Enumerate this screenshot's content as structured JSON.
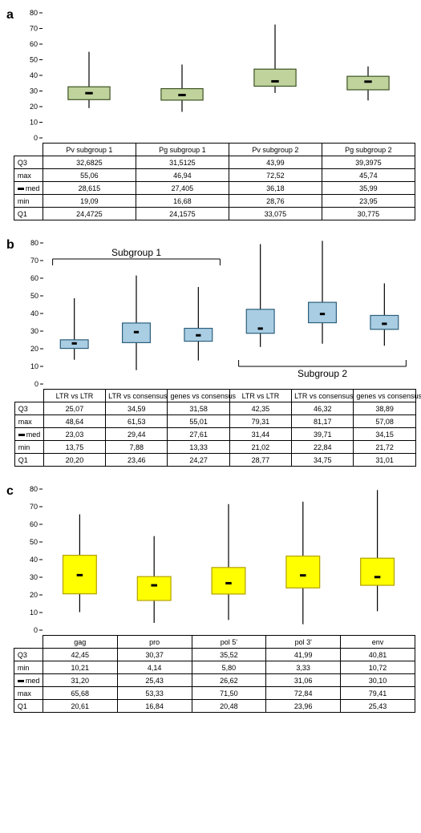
{
  "yaxis": {
    "min": 0,
    "max": 80,
    "step": 10,
    "fontsize": 9,
    "color": "#000000"
  },
  "panelLetterFontsize": 16,
  "panels": [
    {
      "letter": "a",
      "boxFill": "#c0d39c",
      "boxStroke": "#3d5323",
      "boxes": [
        {
          "label": "Pv subgroup 1",
          "q1": 24.4725,
          "med": 28.615,
          "q3": 32.6825,
          "min": 19.09,
          "max": 55.06
        },
        {
          "label": "Pg subgroup 1",
          "q1": 24.1575,
          "med": 27.405,
          "q3": 31.5125,
          "min": 16.68,
          "max": 46.94
        },
        {
          "label": "Pv subgroup 2",
          "q1": 33.075,
          "med": 36.18,
          "q3": 43.99,
          "min": 28.76,
          "max": 72.52
        },
        {
          "label": "Pg subgroup 2",
          "q1": 30.775,
          "med": 35.99,
          "q3": 39.3975,
          "min": 23.95,
          "max": 45.74
        }
      ],
      "tableRows": [
        "Q3",
        "max",
        "med",
        "min",
        "Q1"
      ],
      "tableRowKeys": [
        "q3",
        "max",
        "med",
        "min",
        "q1"
      ],
      "tableValues": [
        [
          "32,6825",
          "31,5125",
          "43,99",
          "39,3975"
        ],
        [
          "55,06",
          "46,94",
          "72,52",
          "45,74"
        ],
        [
          "28,615",
          "27,405",
          "36,18",
          "35,99"
        ],
        [
          "19,09",
          "16,68",
          "28,76",
          "23,95"
        ],
        [
          "24,4725",
          "24,1575",
          "33,075",
          "30,775"
        ]
      ],
      "chartHeight": 170
    },
    {
      "letter": "b",
      "boxFill": "#a9cde3",
      "boxStroke": "#2d5f7c",
      "annotations": [
        {
          "text": "Subgroup 1",
          "side": "top",
          "fromBox": 0,
          "toBox": 2
        },
        {
          "text": "Subgroup 2",
          "side": "bottom",
          "fromBox": 3,
          "toBox": 5
        }
      ],
      "boxes": [
        {
          "label": "LTR vs LTR",
          "q1": 20.2,
          "med": 23.03,
          "q3": 25.07,
          "min": 13.75,
          "max": 48.64
        },
        {
          "label": "LTR vs consensus",
          "q1": 23.46,
          "med": 29.44,
          "q3": 34.59,
          "min": 7.88,
          "max": 61.53
        },
        {
          "label": "genes vs consensus",
          "q1": 24.27,
          "med": 27.61,
          "q3": 31.58,
          "min": 13.33,
          "max": 55.01
        },
        {
          "label": "LTR vs LTR",
          "q1": 28.77,
          "med": 31.44,
          "q3": 42.35,
          "min": 21.02,
          "max": 79.31
        },
        {
          "label": "LTR vs consensus",
          "q1": 34.75,
          "med": 39.71,
          "q3": 46.32,
          "min": 22.84,
          "max": 81.17
        },
        {
          "label": "genes vs consensus",
          "q1": 31.01,
          "med": 34.15,
          "q3": 38.89,
          "min": 21.72,
          "max": 57.08
        }
      ],
      "tableRows": [
        "Q3",
        "max",
        "med",
        "min",
        "Q1"
      ],
      "tableValues": [
        [
          "25,07",
          "34,59",
          "31,58",
          "42,35",
          "46,32",
          "38,89"
        ],
        [
          "48,64",
          "61,53",
          "55,01",
          "79,31",
          "81,17",
          "57,08"
        ],
        [
          "23,03",
          "29,44",
          "27,61",
          "31,44",
          "39,71",
          "34,15"
        ],
        [
          "13,75",
          "7,88",
          "13,33",
          "21,02",
          "22,84",
          "21,72"
        ],
        [
          "20,20",
          "23,46",
          "24,27",
          "28,77",
          "34,75",
          "31,01"
        ]
      ],
      "chartHeight": 190
    },
    {
      "letter": "c",
      "boxFill": "#ffff00",
      "boxStroke": "#b3a000",
      "boxes": [
        {
          "label": "gag",
          "q1": 20.61,
          "med": 31.2,
          "q3": 42.45,
          "min": 10.21,
          "max": 65.68
        },
        {
          "label": "pro",
          "q1": 16.84,
          "med": 25.43,
          "q3": 30.37,
          "min": 4.14,
          "max": 53.33
        },
        {
          "label": "pol 5'",
          "q1": 20.48,
          "med": 26.62,
          "q3": 35.52,
          "min": 5.8,
          "max": 71.5
        },
        {
          "label": "pol 3'",
          "q1": 23.96,
          "med": 31.06,
          "q3": 41.99,
          "min": 3.33,
          "max": 72.84
        },
        {
          "label": "env",
          "q1": 25.43,
          "med": 30.1,
          "q3": 40.81,
          "min": 10.72,
          "max": 79.41
        }
      ],
      "tableRows": [
        "Q3",
        "min",
        "med",
        "max",
        "Q1"
      ],
      "tableValues": [
        [
          "42,45",
          "30,37",
          "35,52",
          "41,99",
          "40,81"
        ],
        [
          "10,21",
          "4,14",
          "5,80",
          "3,33",
          "10,72"
        ],
        [
          "31,20",
          "25,43",
          "26,62",
          "31,06",
          "30,10"
        ],
        [
          "65,68",
          "53,33",
          "71,50",
          "72,84",
          "79,41"
        ],
        [
          "20,61",
          "16,84",
          "20,48",
          "23,96",
          "25,43"
        ]
      ],
      "chartHeight": 190
    }
  ],
  "chartStyle": {
    "plotLeft": 36,
    "plotRight": 500,
    "plotTop": 8,
    "boxWidthFrac": 0.45,
    "whiskerEndFrac": 0.45,
    "medMarkerFrac": 0.18,
    "whiskerColor": "#000000",
    "whiskerWidth": 1.2,
    "boxStrokeWidth": 1.2,
    "axisColor": "#000000",
    "tickLength": 4
  }
}
